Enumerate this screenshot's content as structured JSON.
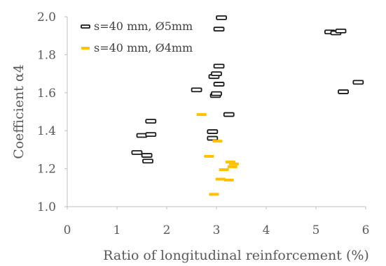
{
  "chart_data": {
    "type": "scatter",
    "xlabel": "Ratio of longitudinal reinforcement (%)",
    "ylabel": "Coefficient α4",
    "xlim": [
      0,
      6
    ],
    "ylim": [
      1.0,
      2.0
    ],
    "xticks": [
      "0",
      "1",
      "2",
      "3",
      "4",
      "5",
      "6"
    ],
    "yticks": [
      "1.0",
      "1.2",
      "1.4",
      "1.6",
      "1.8",
      "2.0"
    ],
    "grid": false,
    "legend_position": "top-left",
    "series": [
      {
        "name": "s=40 mm, Ø5mm",
        "color": "#1a1a1a",
        "marker": "dash",
        "points": [
          [
            1.4,
            1.285
          ],
          [
            1.6,
            1.27
          ],
          [
            1.62,
            1.24
          ],
          [
            1.5,
            1.375
          ],
          [
            1.68,
            1.38
          ],
          [
            1.68,
            1.45
          ],
          [
            2.6,
            1.615
          ],
          [
            2.92,
            1.395
          ],
          [
            2.92,
            1.36
          ],
          [
            2.95,
            1.685
          ],
          [
            3.0,
            1.7
          ],
          [
            2.98,
            1.585
          ],
          [
            3.0,
            1.595
          ],
          [
            3.05,
            1.645
          ],
          [
            3.05,
            1.74
          ],
          [
            3.05,
            1.935
          ],
          [
            3.1,
            1.995
          ],
          [
            3.25,
            1.485
          ],
          [
            5.55,
            1.605
          ],
          [
            5.85,
            1.655
          ],
          [
            5.28,
            1.92
          ],
          [
            5.4,
            1.915
          ],
          [
            5.5,
            1.925
          ]
        ]
      },
      {
        "name": "s=40 mm, Ø4mm",
        "color": "#ffc000",
        "marker": "dash",
        "points": [
          [
            2.7,
            1.485
          ],
          [
            2.85,
            1.265
          ],
          [
            2.95,
            1.065
          ],
          [
            3.02,
            1.345
          ],
          [
            3.08,
            1.145
          ],
          [
            3.15,
            1.195
          ],
          [
            3.25,
            1.14
          ],
          [
            3.28,
            1.235
          ],
          [
            3.32,
            1.21
          ],
          [
            3.35,
            1.225
          ]
        ]
      }
    ]
  }
}
